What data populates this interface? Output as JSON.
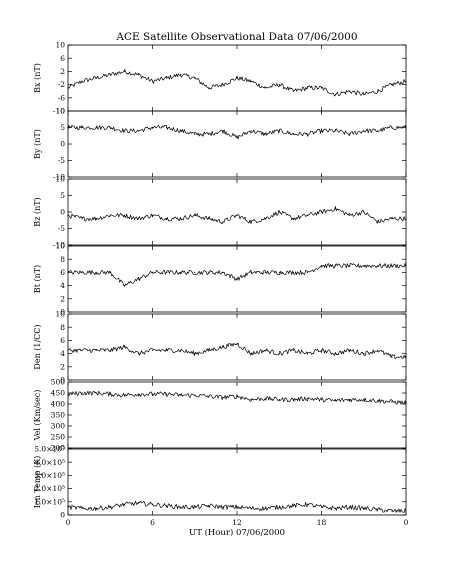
{
  "figure": {
    "title": "ACE Satellite Observational Data   07/06/2000",
    "xlabel": "UT (Hour)   07/06/2000"
  },
  "chart_data": {
    "type": "line",
    "title": "ACE Satellite Observational Data   07/06/2000",
    "xlabel": "UT (Hour)   07/06/2000",
    "x": [
      0,
      1,
      2,
      3,
      4,
      5,
      6,
      7,
      8,
      9,
      10,
      11,
      12,
      13,
      14,
      15,
      16,
      17,
      18,
      19,
      20,
      21,
      22,
      23,
      24
    ],
    "xticks": [
      "0",
      "6",
      "12",
      "18",
      "0"
    ],
    "xtick_values": [
      0,
      6,
      12,
      18,
      24
    ],
    "xlim": [
      0,
      24
    ],
    "grid": false,
    "panels": [
      {
        "ylabel": "Bx (nT)",
        "ylim": [
          -10,
          10
        ],
        "ytick_labels": [
          "-10",
          "-6",
          "-2",
          "2",
          "6",
          "10"
        ],
        "ytick_values": [
          -10,
          -6,
          -2,
          2,
          6,
          10
        ],
        "series": [
          {
            "values": [
              -3,
              -1,
              0,
              1,
              2,
              1,
              -1,
              0,
              1,
              0,
              -3,
              -2,
              0,
              -1,
              -3,
              -2,
              -4,
              -3,
              -3,
              -5,
              -4,
              -5,
              -4,
              -2,
              -1
            ]
          }
        ]
      },
      {
        "ylabel": "By (nT)",
        "ylim": [
          -10,
          10
        ],
        "ytick_labels": [
          "-10",
          "-5",
          "0",
          "5",
          "10"
        ],
        "ytick_values": [
          -10,
          -5,
          0,
          5,
          10
        ],
        "series": [
          {
            "values": [
              5,
              5,
              5,
              5,
              4,
              4,
              5,
              5,
              4,
              3,
              3,
              4,
              2,
              4,
              3,
              4,
              3,
              3,
              4,
              4,
              3,
              4,
              4,
              5,
              5
            ]
          }
        ]
      },
      {
        "ylabel": "Bz (nT)",
        "ylim": [
          -10,
          10
        ],
        "ytick_labels": [
          "-10",
          "-5",
          "0",
          "5",
          "10"
        ],
        "ytick_values": [
          -10,
          -5,
          0,
          5,
          10
        ],
        "series": [
          {
            "values": [
              -1,
              -2,
              -2,
              -1,
              -1,
              -2,
              -1,
              -2,
              -2,
              -1,
              -2,
              -3,
              -1,
              -3,
              -2,
              0,
              -2,
              -1,
              0,
              1,
              -1,
              0,
              -3,
              -2,
              -2
            ]
          }
        ]
      },
      {
        "ylabel": "Bt (nT)",
        "ylim": [
          0,
          10
        ],
        "ytick_labels": [
          "0",
          "2",
          "4",
          "6",
          "8",
          "10"
        ],
        "ytick_values": [
          0,
          2,
          4,
          6,
          8,
          10
        ],
        "series": [
          {
            "values": [
              6,
              6,
              6,
              6,
              4,
              5,
              6,
              6,
              6,
              6,
              6,
              6,
              5,
              6,
              6,
              6,
              6,
              6,
              7,
              7,
              7,
              7,
              7,
              7,
              7
            ]
          }
        ]
      },
      {
        "ylabel": "Den (1/CC)",
        "ylim": [
          0,
          10
        ],
        "ytick_labels": [
          "0",
          "2",
          "4",
          "6",
          "8",
          "10"
        ],
        "ytick_values": [
          0,
          2,
          4,
          6,
          8,
          10
        ],
        "series": [
          {
            "values": [
              4.5,
              4.5,
              4.5,
              4.5,
              5,
              4,
              4.5,
              4.5,
              4.5,
              4,
              4.5,
              5,
              5.5,
              4,
              4.5,
              4,
              4.5,
              4,
              4.5,
              4,
              4.5,
              4,
              4.5,
              3.5,
              3.5
            ]
          }
        ]
      },
      {
        "ylabel": "Vel (Km/sec)",
        "ylim": [
          200,
          500
        ],
        "ytick_labels": [
          "200",
          "250",
          "300",
          "350",
          "400",
          "450",
          "500"
        ],
        "ytick_values": [
          200,
          250,
          300,
          350,
          400,
          450,
          500
        ],
        "series": [
          {
            "values": [
              445,
              450,
              450,
              445,
              440,
              445,
              445,
              445,
              440,
              440,
              435,
              430,
              435,
              420,
              425,
              420,
              420,
              425,
              420,
              415,
              420,
              420,
              415,
              410,
              405
            ]
          }
        ]
      },
      {
        "ylabel": "Ion Temp (K)",
        "ylim": [
          0,
          500000
        ],
        "ytick_labels": [
          "0",
          "1.0×10⁵",
          "2.0×10⁵",
          "3.0×10⁵",
          "4.0×10⁵",
          "5.0×10⁵"
        ],
        "ytick_values": [
          0,
          100000,
          200000,
          300000,
          400000,
          500000
        ],
        "series": [
          {
            "values": [
              60000,
              50000,
              50000,
              60000,
              80000,
              90000,
              80000,
              70000,
              60000,
              60000,
              70000,
              60000,
              60000,
              50000,
              50000,
              60000,
              70000,
              80000,
              60000,
              50000,
              60000,
              50000,
              40000,
              30000,
              30000
            ]
          }
        ]
      }
    ]
  }
}
